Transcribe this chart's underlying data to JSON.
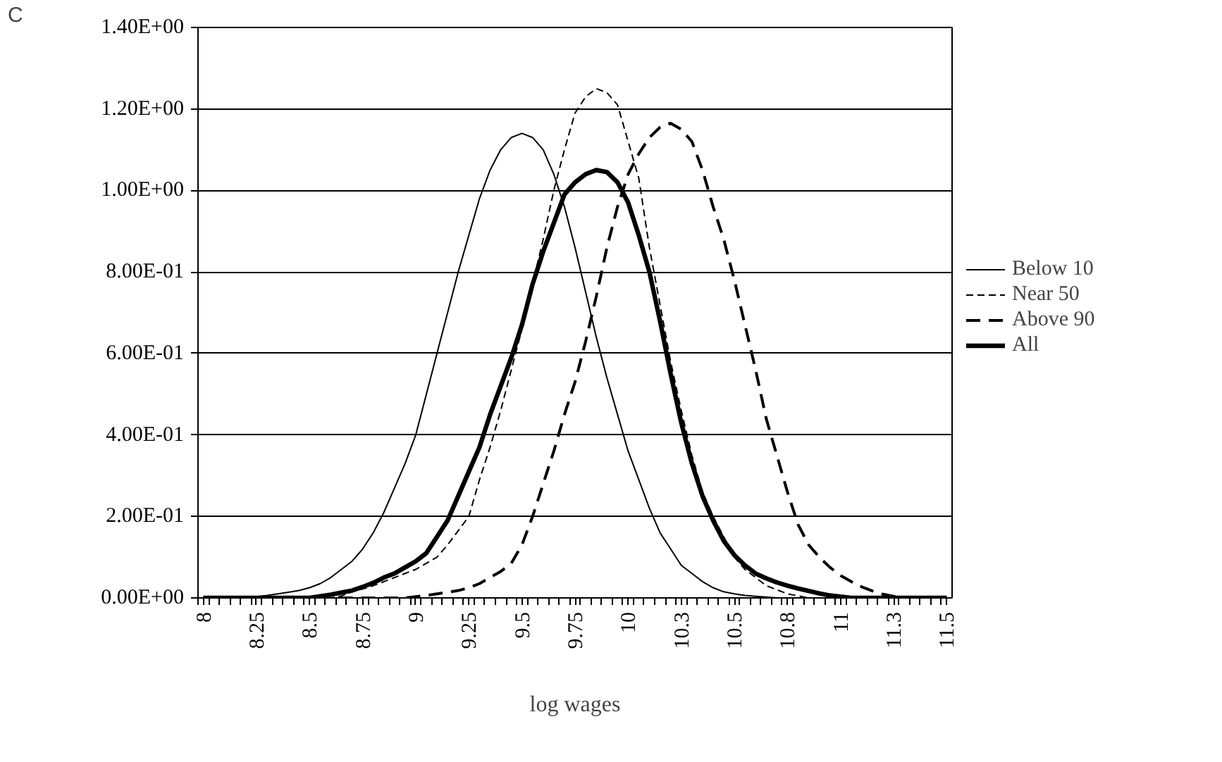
{
  "chart_data": {
    "type": "line",
    "annotations": [
      "C"
    ],
    "xlabel": "log wages",
    "x": [
      8,
      8.05,
      8.1,
      8.15,
      8.2,
      8.25,
      8.3,
      8.35,
      8.4,
      8.45,
      8.5,
      8.55,
      8.6,
      8.65,
      8.7,
      8.75,
      8.8,
      8.85,
      8.9,
      8.95,
      9,
      9.05,
      9.1,
      9.15,
      9.2,
      9.25,
      9.3,
      9.35,
      9.4,
      9.45,
      9.5,
      9.55,
      9.6,
      9.65,
      9.7,
      9.75,
      9.8,
      9.85,
      9.9,
      9.95,
      10,
      10.05,
      10.1,
      10.15,
      10.2,
      10.25,
      10.3,
      10.35,
      10.4,
      10.45,
      10.5,
      10.55,
      10.6,
      10.65,
      10.7,
      10.75,
      10.8,
      10.85,
      10.9,
      10.95,
      11,
      11.05,
      11.1,
      11.15,
      11.2,
      11.25,
      11.3,
      11.35,
      11.4,
      11.45,
      11.5
    ],
    "series": [
      {
        "name": "Below 10",
        "color": "#000000",
        "line_style": "solid",
        "values": [
          0,
          0,
          0,
          0,
          0,
          0.003,
          0.006,
          0.01,
          0.014,
          0.018,
          0.025,
          0.035,
          0.05,
          0.07,
          0.09,
          0.12,
          0.16,
          0.21,
          0.27,
          0.33,
          0.4,
          0.5,
          0.6,
          0.7,
          0.8,
          0.89,
          0.98,
          1.05,
          1.1,
          1.13,
          1.14,
          1.13,
          1.1,
          1.04,
          0.96,
          0.86,
          0.75,
          0.64,
          0.54,
          0.45,
          0.36,
          0.29,
          0.22,
          0.16,
          0.12,
          0.08,
          0.06,
          0.04,
          0.025,
          0.015,
          0.01,
          0.006,
          0.004,
          0.002,
          0,
          0,
          0,
          0,
          0,
          0,
          0,
          0,
          0,
          0,
          0,
          0,
          0,
          0,
          0,
          0,
          0
        ]
      },
      {
        "name": "Near 50",
        "color": "#000000",
        "line_style": "dashed",
        "values": [
          0,
          0,
          0,
          0,
          0,
          0,
          0,
          0,
          0,
          0,
          0,
          0,
          0,
          0.005,
          0.015,
          0.022,
          0.03,
          0.04,
          0.05,
          0.06,
          0.07,
          0.085,
          0.1,
          0.13,
          0.165,
          0.2,
          0.29,
          0.37,
          0.46,
          0.56,
          0.66,
          0.77,
          0.88,
          1.0,
          1.1,
          1.19,
          1.23,
          1.25,
          1.24,
          1.21,
          1.12,
          1.03,
          0.86,
          0.72,
          0.58,
          0.46,
          0.35,
          0.26,
          0.2,
          0.15,
          0.1,
          0.07,
          0.05,
          0.03,
          0.02,
          0.01,
          0.005,
          0,
          0,
          0,
          0,
          0,
          0,
          0,
          0,
          0,
          0,
          0,
          0,
          0,
          0
        ]
      },
      {
        "name": "Above 90",
        "color": "#000000",
        "line_style": "dashed",
        "values": [
          0,
          0,
          0,
          0,
          0,
          0,
          0,
          0,
          0,
          0,
          0,
          0,
          0,
          0,
          0,
          0,
          0,
          0,
          0,
          0,
          0.003,
          0.006,
          0.01,
          0.014,
          0.018,
          0.025,
          0.035,
          0.05,
          0.065,
          0.085,
          0.13,
          0.2,
          0.28,
          0.36,
          0.45,
          0.53,
          0.63,
          0.74,
          0.86,
          0.96,
          1.04,
          1.09,
          1.13,
          1.155,
          1.165,
          1.15,
          1.12,
          1.05,
          0.96,
          0.88,
          0.78,
          0.67,
          0.56,
          0.44,
          0.35,
          0.26,
          0.18,
          0.13,
          0.1,
          0.075,
          0.055,
          0.04,
          0.027,
          0.017,
          0.009,
          0.004,
          0,
          0,
          0,
          0,
          0
        ]
      },
      {
        "name": "All",
        "color": "#000000",
        "line_style": "solid",
        "values": [
          0,
          0,
          0,
          0,
          0,
          0,
          0,
          0,
          0,
          0,
          0,
          0.004,
          0.008,
          0.013,
          0.018,
          0.027,
          0.037,
          0.05,
          0.06,
          0.075,
          0.09,
          0.11,
          0.15,
          0.19,
          0.25,
          0.31,
          0.37,
          0.45,
          0.52,
          0.59,
          0.67,
          0.77,
          0.85,
          0.92,
          0.99,
          1.02,
          1.04,
          1.05,
          1.045,
          1.02,
          0.97,
          0.89,
          0.8,
          0.68,
          0.55,
          0.43,
          0.33,
          0.25,
          0.19,
          0.14,
          0.105,
          0.08,
          0.06,
          0.048,
          0.038,
          0.03,
          0.023,
          0.017,
          0.011,
          0.006,
          0.003,
          0,
          0,
          0,
          0,
          0,
          0,
          0,
          0,
          0,
          0
        ]
      }
    ],
    "xlim": [
      7.975,
      11.525
    ],
    "xticks": [
      8,
      8.25,
      8.5,
      8.75,
      9,
      9.25,
      9.5,
      9.75,
      10,
      {
        "value": 10.25,
        "label": "10.3"
      },
      10.5,
      {
        "value": 10.75,
        "label": "10.8"
      },
      11,
      {
        "value": 11.25,
        "label": "11.3"
      },
      11.5
    ],
    "ylim": [
      0,
      1.4
    ],
    "yticks": [
      {
        "value": 0,
        "label": "0.00E+00"
      },
      {
        "value": 0.2,
        "label": "2.00E-01"
      },
      {
        "value": 0.4,
        "label": "4.00E-01"
      },
      {
        "value": 0.6,
        "label": "6.00E-01"
      },
      {
        "value": 0.8,
        "label": "8.00E-01"
      },
      {
        "value": 1.0,
        "label": "1.00E+00"
      },
      {
        "value": 1.2,
        "label": "1.20E+00"
      },
      {
        "value": 1.4,
        "label": "1.40E+00"
      }
    ],
    "grid": "y",
    "legend": "right",
    "marker": "none"
  }
}
